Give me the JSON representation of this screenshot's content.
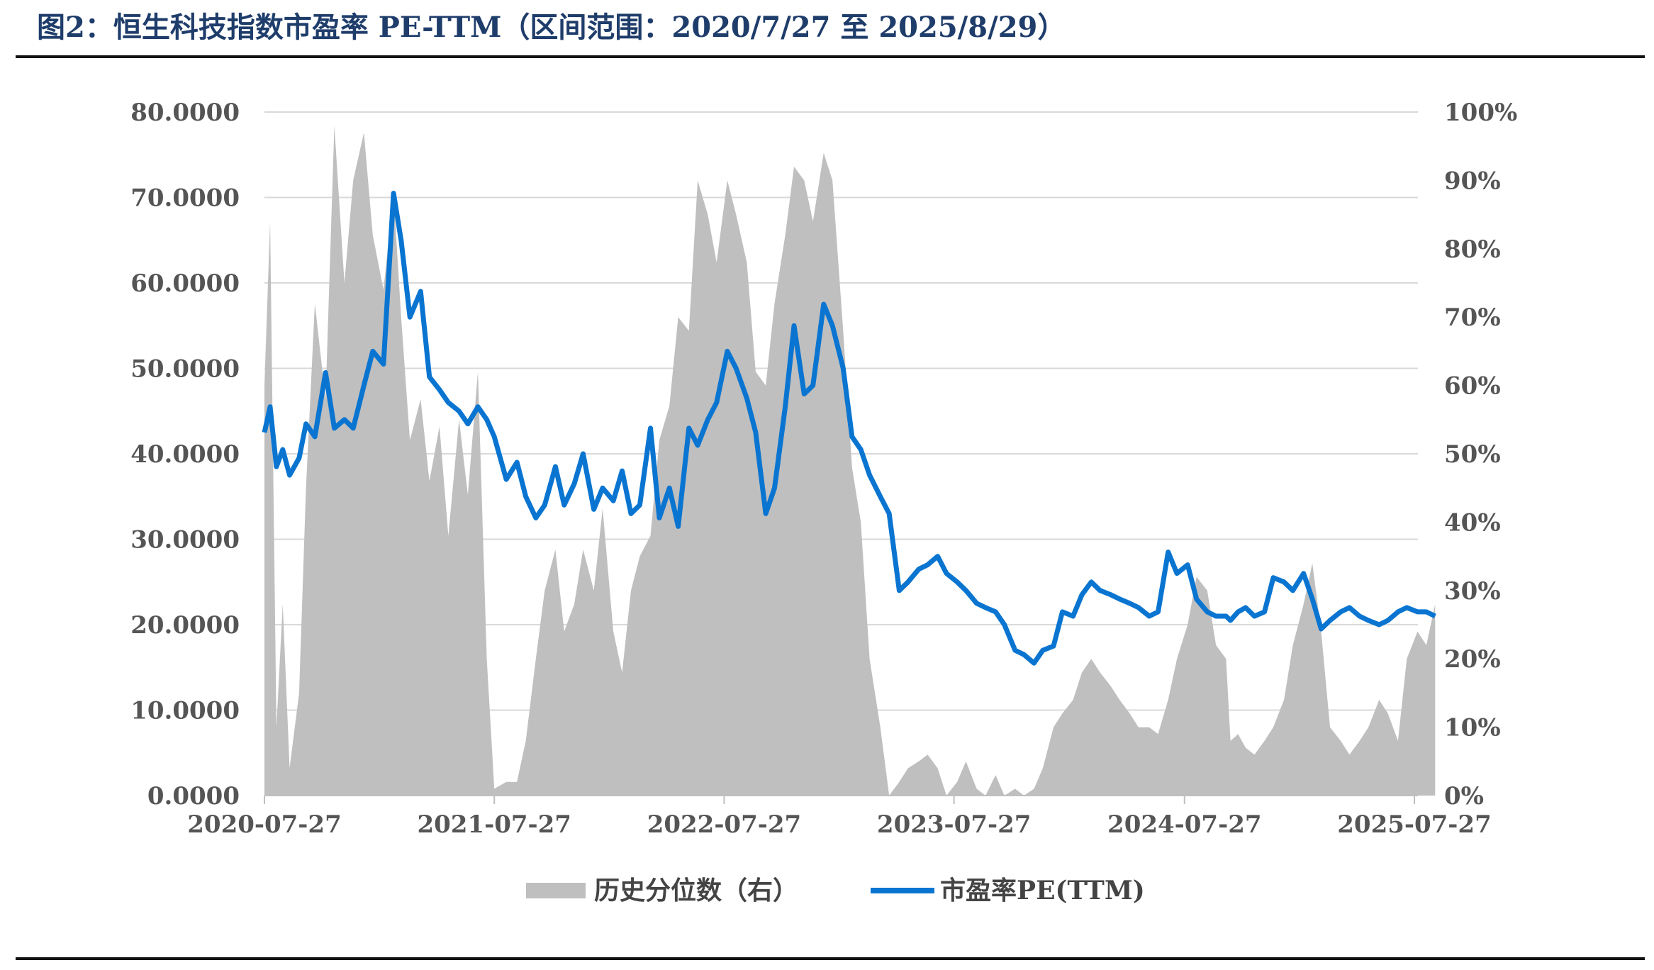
{
  "title": "图2：恒生科技指数市盈率 PE-TTM（区间范围：2020/7/27 至 2025/8/29）",
  "chart_data": {
    "type": "line",
    "title": "图2：恒生科技指数市盈率 PE-TTM（区间范围：2020/7/27 至 2025/8/29）",
    "x_ticks": [
      "2020-07-27",
      "2021-07-27",
      "2022-07-27",
      "2023-07-27",
      "2024-07-27",
      "2025-07-27"
    ],
    "y_left": {
      "ticks": [
        "0.0000",
        "10.0000",
        "20.0000",
        "30.0000",
        "40.0000",
        "50.0000",
        "60.0000",
        "70.0000",
        "80.0000"
      ],
      "range": [
        0,
        80
      ]
    },
    "y_right": {
      "ticks": [
        "0%",
        "10%",
        "20%",
        "30%",
        "40%",
        "50%",
        "60%",
        "70%",
        "80%",
        "90%",
        "100%"
      ],
      "range": [
        0,
        100
      ]
    },
    "grid": true,
    "legend_position": "bottom",
    "colors": {
      "percentile": "#bfbfbf",
      "pe": "#0a75d1"
    },
    "series": [
      {
        "name": "历史分位数（右）",
        "type": "area",
        "axis": "right",
        "x": [
          "2020-07-27",
          "2020-08-05",
          "2020-08-15",
          "2020-08-25",
          "2020-09-05",
          "2020-09-20",
          "2020-10-01",
          "2020-10-15",
          "2020-11-01",
          "2020-11-15",
          "2020-12-01",
          "2020-12-15",
          "2021-01-01",
          "2021-01-15",
          "2021-02-01",
          "2021-02-17",
          "2021-03-01",
          "2021-03-15",
          "2021-04-01",
          "2021-04-15",
          "2021-05-01",
          "2021-05-15",
          "2021-06-01",
          "2021-06-15",
          "2021-07-01",
          "2021-07-15",
          "2021-07-27",
          "2021-08-15",
          "2021-09-01",
          "2021-09-15",
          "2021-10-01",
          "2021-10-15",
          "2021-11-01",
          "2021-11-15",
          "2021-12-01",
          "2021-12-15",
          "2022-01-01",
          "2022-01-15",
          "2022-02-01",
          "2022-02-15",
          "2022-03-01",
          "2022-03-15",
          "2022-04-01",
          "2022-04-15",
          "2022-05-01",
          "2022-05-15",
          "2022-06-01",
          "2022-06-15",
          "2022-07-01",
          "2022-07-15",
          "2022-08-01",
          "2022-08-15",
          "2022-09-01",
          "2022-09-15",
          "2022-10-01",
          "2022-10-15",
          "2022-11-01",
          "2022-11-15",
          "2022-12-01",
          "2022-12-15",
          "2023-01-01",
          "2023-01-15",
          "2023-02-01",
          "2023-02-15",
          "2023-03-01",
          "2023-03-15",
          "2023-04-01",
          "2023-04-15",
          "2023-05-01",
          "2023-05-15",
          "2023-06-01",
          "2023-06-15",
          "2023-07-01",
          "2023-07-15",
          "2023-08-01",
          "2023-08-15",
          "2023-09-01",
          "2023-09-15",
          "2023-10-01",
          "2023-10-15",
          "2023-11-01",
          "2023-11-15",
          "2023-12-01",
          "2023-12-15",
          "2024-01-01",
          "2024-01-15",
          "2024-02-01",
          "2024-02-15",
          "2024-03-01",
          "2024-03-15",
          "2024-04-01",
          "2024-04-15",
          "2024-05-01",
          "2024-05-15",
          "2024-06-01",
          "2024-06-15",
          "2024-07-01",
          "2024-07-15",
          "2024-08-01",
          "2024-08-15",
          "2024-09-01",
          "2024-09-15",
          "2024-10-01",
          "2024-10-08",
          "2024-10-20",
          "2024-11-01",
          "2024-11-15",
          "2024-12-01",
          "2024-12-15",
          "2025-01-01",
          "2025-01-15",
          "2025-02-01",
          "2025-02-15",
          "2025-03-01",
          "2025-03-15",
          "2025-04-01",
          "2025-04-15",
          "2025-05-01",
          "2025-05-15",
          "2025-06-01",
          "2025-06-15",
          "2025-07-01",
          "2025-07-15",
          "2025-08-01",
          "2025-08-15",
          "2025-08-29"
        ],
        "values": [
          60,
          84,
          10,
          28,
          4,
          15,
          45,
          72,
          58,
          98,
          75,
          90,
          97,
          82,
          74,
          88,
          70,
          52,
          58,
          46,
          54,
          38,
          55,
          44,
          62,
          20,
          1,
          2,
          2,
          8,
          20,
          30,
          36,
          24,
          28,
          36,
          30,
          42,
          24,
          18,
          30,
          35,
          38,
          52,
          57,
          70,
          68,
          90,
          85,
          78,
          90,
          85,
          78,
          62,
          60,
          72,
          82,
          92,
          90,
          84,
          94,
          90,
          68,
          48,
          40,
          20,
          10,
          0,
          2,
          4,
          5,
          6,
          4,
          0,
          2,
          5,
          1,
          0,
          3,
          0,
          1,
          0,
          1,
          4,
          10,
          12,
          14,
          18,
          20,
          18,
          16,
          14,
          12,
          10,
          10,
          9,
          14,
          20,
          25,
          32,
          30,
          22,
          20,
          8,
          9,
          7,
          6,
          8,
          10,
          14,
          22,
          28,
          34,
          24,
          10,
          8,
          6,
          8,
          10,
          14,
          12,
          8,
          20,
          24,
          22,
          28
        ],
        "units": "%"
      },
      {
        "name": "市盈率PE(TTM)",
        "type": "line",
        "axis": "left",
        "x": [
          "2020-07-27",
          "2020-08-05",
          "2020-08-15",
          "2020-08-25",
          "2020-09-05",
          "2020-09-20",
          "2020-10-01",
          "2020-10-15",
          "2020-11-01",
          "2020-11-15",
          "2020-12-01",
          "2020-12-15",
          "2021-01-01",
          "2021-01-15",
          "2021-02-01",
          "2021-02-17",
          "2021-03-01",
          "2021-03-15",
          "2021-04-01",
          "2021-04-15",
          "2021-05-01",
          "2021-05-15",
          "2021-06-01",
          "2021-06-15",
          "2021-07-01",
          "2021-07-15",
          "2021-07-27",
          "2021-08-15",
          "2021-09-01",
          "2021-09-15",
          "2021-10-01",
          "2021-10-15",
          "2021-11-01",
          "2021-11-15",
          "2021-12-01",
          "2021-12-15",
          "2022-01-01",
          "2022-01-15",
          "2022-02-01",
          "2022-02-15",
          "2022-03-01",
          "2022-03-15",
          "2022-04-01",
          "2022-04-15",
          "2022-05-01",
          "2022-05-15",
          "2022-06-01",
          "2022-06-15",
          "2022-07-01",
          "2022-07-15",
          "2022-08-01",
          "2022-08-15",
          "2022-09-01",
          "2022-09-15",
          "2022-10-01",
          "2022-10-15",
          "2022-11-01",
          "2022-11-15",
          "2022-12-01",
          "2022-12-15",
          "2023-01-01",
          "2023-01-15",
          "2023-02-01",
          "2023-02-15",
          "2023-03-01",
          "2023-03-15",
          "2023-04-01",
          "2023-04-15",
          "2023-05-01",
          "2023-05-15",
          "2023-06-01",
          "2023-06-15",
          "2023-07-01",
          "2023-07-15",
          "2023-08-01",
          "2023-08-15",
          "2023-09-01",
          "2023-09-15",
          "2023-10-01",
          "2023-10-15",
          "2023-11-01",
          "2023-11-15",
          "2023-12-01",
          "2023-12-15",
          "2024-01-01",
          "2024-01-15",
          "2024-02-01",
          "2024-02-15",
          "2024-03-01",
          "2024-03-15",
          "2024-04-01",
          "2024-04-15",
          "2024-05-01",
          "2024-05-15",
          "2024-06-01",
          "2024-06-15",
          "2024-07-01",
          "2024-07-15",
          "2024-08-01",
          "2024-08-15",
          "2024-09-01",
          "2024-09-15",
          "2024-10-01",
          "2024-10-08",
          "2024-10-20",
          "2024-11-01",
          "2024-11-15",
          "2024-12-01",
          "2024-12-15",
          "2025-01-01",
          "2025-01-15",
          "2025-02-01",
          "2025-02-15",
          "2025-03-01",
          "2025-03-15",
          "2025-04-01",
          "2025-04-15",
          "2025-05-01",
          "2025-05-15",
          "2025-06-01",
          "2025-06-15",
          "2025-07-01",
          "2025-07-15",
          "2025-08-01",
          "2025-08-15",
          "2025-08-29"
        ],
        "values": [
          42.5,
          45.5,
          38.5,
          40.5,
          37.5,
          39.5,
          43.5,
          42.0,
          49.5,
          43.0,
          44.0,
          43.0,
          48.0,
          52.0,
          50.5,
          70.5,
          65.0,
          56.0,
          59.0,
          49.0,
          47.5,
          46.0,
          45.0,
          43.5,
          45.5,
          44.0,
          42.0,
          37.0,
          39.0,
          35.0,
          32.5,
          34.0,
          38.5,
          34.0,
          36.5,
          40.0,
          33.5,
          36.0,
          34.5,
          38.0,
          33.0,
          34.0,
          43.0,
          32.5,
          36.0,
          31.5,
          43.0,
          41.0,
          44.0,
          46.0,
          52.0,
          50.0,
          46.5,
          42.5,
          33.0,
          36.0,
          45.5,
          55.0,
          47.0,
          48.0,
          57.5,
          55.0,
          50.0,
          42.0,
          40.5,
          37.5,
          35.0,
          33.0,
          24.0,
          25.0,
          26.5,
          27.0,
          28.0,
          26.0,
          25.0,
          24.0,
          22.5,
          22.0,
          21.5,
          20.0,
          17.0,
          16.5,
          15.5,
          17.0,
          17.5,
          21.5,
          21.0,
          23.5,
          25.0,
          24.0,
          23.5,
          23.0,
          22.5,
          22.0,
          21.0,
          21.5,
          28.5,
          26.0,
          27.0,
          23.0,
          21.5,
          21.0,
          21.0,
          20.5,
          21.5,
          22.0,
          21.0,
          21.5,
          25.5,
          25.0,
          24.0,
          26.0,
          23.0,
          19.5,
          20.5,
          21.5,
          22.0,
          21.0,
          20.5,
          20.0,
          20.5,
          21.5,
          22.0,
          21.5,
          21.5,
          21.0
        ],
        "units": ""
      }
    ]
  }
}
